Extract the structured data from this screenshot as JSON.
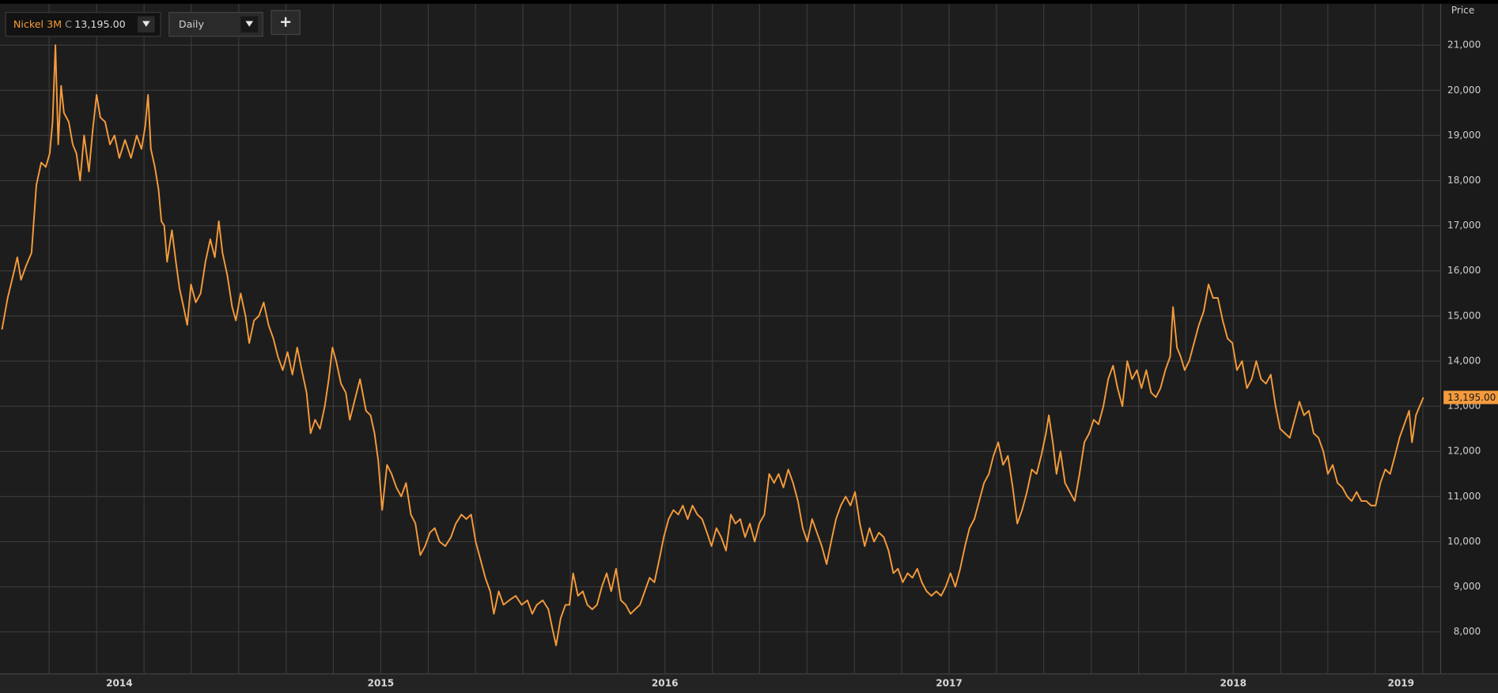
{
  "toolbar": {
    "instrument": "Nickel 3M",
    "close_flag": "C",
    "close": "13,195.00",
    "interval": "Daily"
  },
  "chart_data": {
    "type": "line",
    "y_axis_title": "Price",
    "color": "#f59b3c",
    "grid": true,
    "last_label": "13,195.00",
    "xlim": [
      2014.16,
      2019.23
    ],
    "xticks": [
      {
        "value": 2014.58,
        "label": "2014"
      },
      {
        "value": 2015.5,
        "label": "2015"
      },
      {
        "value": 2016.5,
        "label": "2016"
      },
      {
        "value": 2017.5,
        "label": "2017"
      },
      {
        "value": 2018.5,
        "label": "2018"
      },
      {
        "value": 2019.09,
        "label": "2019"
      }
    ],
    "xgrid": [
      2014.333,
      2014.5,
      2014.667,
      2014.833,
      2015,
      2015.167,
      2015.333,
      2015.5,
      2015.667,
      2015.833,
      2016,
      2016.167,
      2016.333,
      2016.5,
      2016.667,
      2016.833,
      2017,
      2017.167,
      2017.333,
      2017.5,
      2017.667,
      2017.833,
      2018,
      2018.167,
      2018.333,
      2018.5,
      2018.667,
      2018.833,
      2019,
      2019.167
    ],
    "ylim": [
      7070,
      22000
    ],
    "yticks": [
      {
        "value": 8000,
        "label": "8,000"
      },
      {
        "value": 9000,
        "label": "9,000"
      },
      {
        "value": 10000,
        "label": "10,000"
      },
      {
        "value": 11000,
        "label": "11,000"
      },
      {
        "value": 12000,
        "label": "12,000"
      },
      {
        "value": 13000,
        "label": "13,000"
      },
      {
        "value": 14000,
        "label": "14,000"
      },
      {
        "value": 15000,
        "label": "15,000"
      },
      {
        "value": 16000,
        "label": "16,000"
      },
      {
        "value": 17000,
        "label": "17,000"
      },
      {
        "value": 18000,
        "label": "18,000"
      },
      {
        "value": 19000,
        "label": "19,000"
      },
      {
        "value": 20000,
        "label": "20,000"
      },
      {
        "value": 21000,
        "label": "21,000"
      }
    ],
    "x": [
      2014.167,
      2014.187,
      2014.21,
      2014.221,
      2014.234,
      2014.251,
      2014.271,
      2014.288,
      2014.305,
      2014.321,
      2014.335,
      2014.345,
      2014.355,
      2014.365,
      2014.375,
      2014.385,
      2014.402,
      2014.416,
      2014.429,
      2014.442,
      2014.456,
      2014.473,
      2014.486,
      2014.5,
      2014.513,
      2014.53,
      2014.547,
      2014.563,
      2014.58,
      2014.6,
      2014.621,
      2014.641,
      2014.658,
      2014.671,
      2014.681,
      2014.691,
      2014.705,
      2014.718,
      2014.728,
      2014.738,
      2014.748,
      2014.765,
      2014.779,
      2014.792,
      2014.806,
      2014.819,
      2014.832,
      2014.849,
      2014.866,
      2014.883,
      2014.9,
      2014.916,
      2014.93,
      2014.943,
      2014.96,
      2014.977,
      2014.99,
      2015.007,
      2015.024,
      2015.037,
      2015.054,
      2015.071,
      2015.088,
      2015.105,
      2015.122,
      2015.138,
      2015.155,
      2015.172,
      2015.189,
      2015.206,
      2015.222,
      2015.239,
      2015.253,
      2015.269,
      2015.286,
      2015.303,
      2015.317,
      2015.33,
      2015.343,
      2015.36,
      2015.377,
      2015.391,
      2015.407,
      2015.427,
      2015.448,
      2015.464,
      2015.478,
      2015.491,
      2015.505,
      2015.522,
      2015.538,
      2015.555,
      2015.572,
      2015.589,
      2015.606,
      2015.622,
      2015.639,
      2015.656,
      2015.673,
      2015.69,
      2015.707,
      2015.727,
      2015.747,
      2015.764,
      2015.784,
      2015.801,
      2015.818,
      2015.834,
      2015.851,
      2015.868,
      2015.885,
      2015.898,
      2015.915,
      2015.932,
      2015.952,
      2015.975,
      2015.996,
      2016.016,
      2016.033,
      2016.049,
      2016.07,
      2016.09,
      2016.103,
      2016.117,
      2016.133,
      2016.15,
      2016.164,
      2016.177,
      2016.194,
      2016.211,
      2016.227,
      2016.244,
      2016.261,
      2016.278,
      2016.295,
      2016.311,
      2016.328,
      2016.345,
      2016.362,
      2016.379,
      2016.395,
      2016.412,
      2016.429,
      2016.446,
      2016.463,
      2016.48,
      2016.496,
      2016.513,
      2016.53,
      2016.547,
      2016.563,
      2016.58,
      2016.597,
      2016.614,
      2016.631,
      2016.648,
      2016.664,
      2016.681,
      2016.698,
      2016.715,
      2016.732,
      2016.748,
      2016.765,
      2016.782,
      2016.799,
      2016.816,
      2016.832,
      2016.85,
      2016.867,
      2016.884,
      2016.9,
      2016.917,
      2016.934,
      2016.951,
      2016.968,
      2016.985,
      2017.001,
      2017.018,
      2017.035,
      2017.052,
      2017.069,
      2017.085,
      2017.102,
      2017.119,
      2017.136,
      2017.153,
      2017.169,
      2017.186,
      2017.203,
      2017.22,
      2017.236,
      2017.253,
      2017.27,
      2017.287,
      2017.304,
      2017.32,
      2017.337,
      2017.354,
      2017.371,
      2017.388,
      2017.404,
      2017.421,
      2017.438,
      2017.455,
      2017.472,
      2017.488,
      2017.505,
      2017.522,
      2017.539,
      2017.556,
      2017.572,
      2017.589,
      2017.606,
      2017.623,
      2017.64,
      2017.656,
      2017.673,
      2017.69,
      2017.707,
      2017.724,
      2017.74,
      2017.757,
      2017.774,
      2017.791,
      2017.808,
      2017.824,
      2017.841,
      2017.851,
      2017.865,
      2017.878,
      2017.892,
      2017.908,
      2017.925,
      2017.942,
      2017.959,
      2017.976,
      2017.993,
      2018.009,
      2018.026,
      2018.043,
      2018.06,
      2018.077,
      2018.093,
      2018.11,
      2018.127,
      2018.144,
      2018.161,
      2018.177,
      2018.194,
      2018.211,
      2018.228,
      2018.244,
      2018.261,
      2018.278,
      2018.288,
      2018.302,
      2018.315,
      2018.329,
      2018.345,
      2018.362,
      2018.379,
      2018.396,
      2018.413,
      2018.429,
      2018.446,
      2018.463,
      2018.48,
      2018.497,
      2018.513,
      2018.531,
      2018.548,
      2018.565,
      2018.581,
      2018.598,
      2018.615,
      2018.632,
      2018.649,
      2018.665,
      2018.682,
      2018.699,
      2018.716,
      2018.733,
      2018.749,
      2018.766,
      2018.783,
      2018.8,
      2018.817,
      2018.833,
      2018.85,
      2018.867,
      2018.884,
      2018.901,
      2018.917,
      2018.934,
      2018.951,
      2018.968,
      2018.985,
      2019.001,
      2019.018,
      2019.035,
      2019.052,
      2019.069,
      2019.085,
      2019.102,
      2019.119,
      2019.129,
      2019.143,
      2019.156,
      2019.169
    ],
    "values": [
      14700,
      15400,
      16000,
      16300,
      15800,
      16100,
      16400,
      17900,
      18400,
      18300,
      18600,
      19300,
      21000,
      18800,
      20100,
      19500,
      19300,
      18800,
      18600,
      18000,
      19000,
      18200,
      19100,
      19900,
      19400,
      19300,
      18800,
      19000,
      18500,
      18900,
      18500,
      19000,
      18700,
      19200,
      19900,
      18700,
      18300,
      17800,
      17100,
      17000,
      16200,
      16900,
      16200,
      15600,
      15200,
      14800,
      15700,
      15300,
      15500,
      16200,
      16700,
      16300,
      17100,
      16400,
      15900,
      15200,
      14900,
      15500,
      15000,
      14400,
      14900,
      15000,
      15300,
      14800,
      14500,
      14100,
      13800,
      14200,
      13700,
      14300,
      13800,
      13300,
      12400,
      12700,
      12500,
      13000,
      13600,
      14300,
      14000,
      13500,
      13300,
      12700,
      13100,
      13600,
      12900,
      12800,
      12400,
      11800,
      10700,
      11700,
      11500,
      11200,
      11000,
      11300,
      10600,
      10400,
      9700,
      9900,
      10200,
      10300,
      10000,
      9900,
      10100,
      10400,
      10600,
      10500,
      10600,
      10000,
      9600,
      9200,
      8900,
      8400,
      8900,
      8600,
      8700,
      8800,
      8600,
      8700,
      8400,
      8600,
      8700,
      8500,
      8100,
      7700,
      8300,
      8600,
      8600,
      9300,
      8800,
      8900,
      8600,
      8500,
      8600,
      9000,
      9300,
      8900,
      9400,
      8700,
      8600,
      8400,
      8500,
      8600,
      8900,
      9200,
      9100,
      9600,
      10100,
      10500,
      10700,
      10600,
      10800,
      10500,
      10800,
      10600,
      10500,
      10200,
      9900,
      10300,
      10100,
      9800,
      10600,
      10400,
      10500,
      10100,
      10400,
      10000,
      10400,
      10600,
      11500,
      11300,
      11500,
      11200,
      11600,
      11300,
      10900,
      10300,
      10000,
      10500,
      10200,
      9900,
      9500,
      10000,
      10500,
      10800,
      11000,
      10800,
      11100,
      10400,
      9900,
      10300,
      10000,
      10200,
      10100,
      9800,
      9300,
      9400,
      9100,
      9300,
      9200,
      9400,
      9100,
      8900,
      8800,
      8900,
      8800,
      9000,
      9300,
      9000,
      9400,
      9900,
      10300,
      10500,
      10900,
      11300,
      11500,
      11900,
      12200,
      11700,
      11900,
      11200,
      10400,
      10700,
      11100,
      11600,
      11500,
      11900,
      12400,
      12800,
      12200,
      11500,
      12000,
      11300,
      11100,
      10900,
      11500,
      12200,
      12400,
      12700,
      12600,
      13000,
      13600,
      13900,
      13400,
      13000,
      14000,
      13600,
      13800,
      13400,
      13800,
      13300,
      13200,
      13400,
      13800,
      14100,
      15200,
      14300,
      14100,
      13800,
      14000,
      14400,
      14800,
      15100,
      15700,
      15400,
      15400,
      14900,
      14500,
      14400,
      13800,
      14000,
      13400,
      13600,
      14000,
      13600,
      13500,
      13700,
      13000,
      12500,
      12400,
      12300,
      12700,
      13100,
      12800,
      12900,
      12400,
      12300,
      12000,
      11500,
      11700,
      11300,
      11200,
      11000,
      10900,
      11100,
      10900,
      10900,
      10800,
      10800,
      11300,
      11600,
      11500,
      11900,
      12300,
      12600,
      12900,
      12200,
      12800,
      13000,
      13195
    ]
  }
}
